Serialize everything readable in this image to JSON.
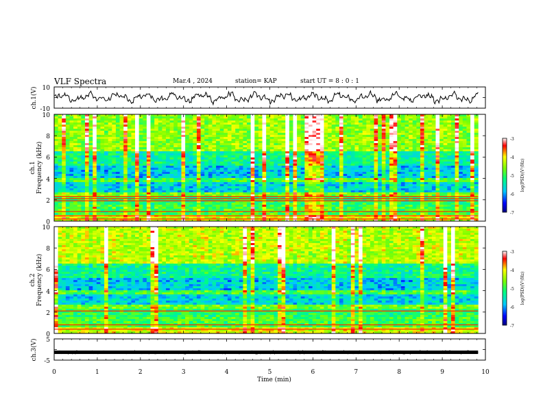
{
  "header": {
    "title": "VLF Spectra",
    "date": "Mar.4 , 2024",
    "station": "station= KAP",
    "start_ut": "start UT = 8 : 0 : 1"
  },
  "chart_data": [
    {
      "type": "line",
      "panel": "ch1-waveform",
      "ylabel": "ch.1(V)",
      "ylim": [
        -10,
        10
      ],
      "yticks": [
        "10",
        "-10"
      ],
      "xlim": [
        0,
        10
      ],
      "x_range_data": [
        0,
        9.83
      ],
      "color": "#000000"
    },
    {
      "type": "heatmap",
      "panel": "ch1-spectrogram",
      "ylabel": "ch.1\nFrequency (kHz)",
      "ylim": [
        0,
        10
      ],
      "yticks": [
        "0",
        "2",
        "4",
        "6",
        "8",
        "10"
      ],
      "xlim": [
        0,
        10
      ],
      "x_range_data": [
        0,
        9.83
      ],
      "colorbar": {
        "label": "log(PSD)(V²/Hz)",
        "range": [
          -7,
          -3
        ],
        "ticks": [
          "-3",
          "-4",
          "-5",
          "-6",
          "-7"
        ],
        "colors": [
          "#000080",
          "#0000ff",
          "#00c8ff",
          "#00ff80",
          "#7fff00",
          "#ffff00",
          "#ff0000",
          "#ffffff"
        ]
      }
    },
    {
      "type": "heatmap",
      "panel": "ch2-spectrogram",
      "ylabel": "ch.2\nFrequency (kHz)",
      "ylim": [
        0,
        10
      ],
      "yticks": [
        "0",
        "2",
        "4",
        "6",
        "8",
        "10"
      ],
      "xlim": [
        0,
        10
      ],
      "x_range_data": [
        0,
        9.83
      ],
      "colorbar": {
        "label": "log(PSD)(V²/Hz)",
        "range": [
          -7,
          -3
        ],
        "ticks": [
          "-3",
          "-4",
          "-5",
          "-6",
          "-7"
        ],
        "colors": [
          "#000080",
          "#0000ff",
          "#00c8ff",
          "#00ff80",
          "#7fff00",
          "#ffff00",
          "#ff0000",
          "#ffffff"
        ]
      }
    },
    {
      "type": "line",
      "panel": "ch3-waveform",
      "ylabel": "ch.3(V)",
      "ylim": [
        -5,
        5
      ],
      "yticks": [
        "5",
        "-5"
      ],
      "xlim": [
        0,
        10
      ],
      "x_range_data": [
        0,
        9.83
      ],
      "approx_value": -1.3,
      "color": "#000000"
    }
  ],
  "xaxis": {
    "label": "Time (min)",
    "ticks": [
      "0",
      "1",
      "2",
      "3",
      "4",
      "5",
      "6",
      "7",
      "8",
      "9",
      "10"
    ]
  },
  "ylabels": {
    "ch1": "ch.1(V)",
    "spec1_a": "ch.1",
    "spec1_b": "Frequency (kHz)",
    "spec2_a": "ch.2",
    "spec2_b": "Frequency (kHz)",
    "ch3": "ch.3(V)"
  },
  "colorbar": {
    "label": "log(PSD)(V²/Hz)",
    "ticks": [
      "-3",
      "-4",
      "-5",
      "-6",
      "-7"
    ]
  }
}
